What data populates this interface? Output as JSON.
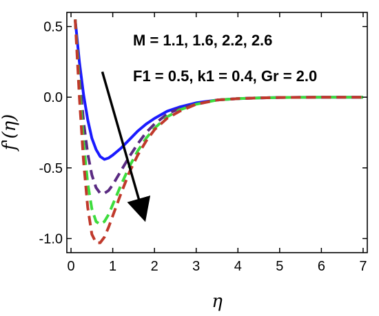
{
  "chart_data": {
    "type": "line",
    "xlabel": "η",
    "ylabel": "f'(η)",
    "xlim": [
      -0.1,
      7.1
    ],
    "ylim": [
      -1.1,
      0.6
    ],
    "xticks": [
      "0",
      "1",
      "2",
      "3",
      "4",
      "5",
      "6",
      "7"
    ],
    "yticks": [
      "0.5",
      "0.0",
      "-0.5",
      "-1.0"
    ],
    "annotation_line1": "M = 1.1,  1.6,  2.2,  2.6",
    "annotation_line2": "F1 = 0.5,  k1 = 0.4,  Gr = 2.0",
    "arrow": {
      "from": [
        0.75,
        0.18
      ],
      "to": [
        1.75,
        -0.85
      ]
    },
    "series": [
      {
        "color": "#1a1aff",
        "dashed": false,
        "x": [
          0.1,
          0.2,
          0.3,
          0.4,
          0.5,
          0.6,
          0.7,
          0.8,
          0.9,
          1.0,
          1.2,
          1.4,
          1.6,
          1.8,
          2.0,
          2.3,
          2.6,
          3.0,
          3.5,
          4.0,
          4.5,
          5.0,
          5.5,
          6.0,
          6.5,
          7.0
        ],
        "y": [
          0.55,
          0.25,
          0.02,
          -0.16,
          -0.29,
          -0.37,
          -0.42,
          -0.44,
          -0.43,
          -0.41,
          -0.36,
          -0.3,
          -0.24,
          -0.19,
          -0.15,
          -0.1,
          -0.07,
          -0.04,
          -0.02,
          -0.01,
          -0.005,
          -0.002,
          -0.001,
          0.0,
          0.0,
          0.0
        ]
      },
      {
        "color": "#5a2a82",
        "dashed": true,
        "x": [
          0.1,
          0.2,
          0.3,
          0.4,
          0.5,
          0.6,
          0.7,
          0.8,
          0.9,
          1.0,
          1.2,
          1.4,
          1.6,
          1.8,
          2.0,
          2.3,
          2.6,
          3.0,
          3.5,
          4.0,
          4.5,
          5.0,
          5.5,
          6.0,
          6.5,
          7.0
        ],
        "y": [
          0.55,
          0.15,
          -0.17,
          -0.4,
          -0.55,
          -0.64,
          -0.68,
          -0.68,
          -0.66,
          -0.62,
          -0.52,
          -0.42,
          -0.33,
          -0.25,
          -0.19,
          -0.12,
          -0.08,
          -0.05,
          -0.02,
          -0.01,
          -0.005,
          -0.002,
          -0.001,
          0.0,
          0.0,
          0.0
        ]
      },
      {
        "color": "#3ddc3d",
        "dashed": true,
        "x": [
          0.1,
          0.2,
          0.3,
          0.4,
          0.5,
          0.6,
          0.7,
          0.8,
          0.9,
          1.0,
          1.2,
          1.4,
          1.6,
          1.8,
          2.0,
          2.3,
          2.6,
          3.0,
          3.5,
          4.0,
          4.5,
          5.0,
          5.5,
          6.0,
          6.5,
          7.0
        ],
        "y": [
          0.55,
          0.08,
          -0.32,
          -0.61,
          -0.79,
          -0.88,
          -0.9,
          -0.88,
          -0.83,
          -0.76,
          -0.62,
          -0.49,
          -0.38,
          -0.29,
          -0.22,
          -0.14,
          -0.09,
          -0.05,
          -0.02,
          -0.01,
          -0.005,
          -0.002,
          -0.001,
          0.0,
          0.0,
          0.0
        ]
      },
      {
        "color": "#c0392b",
        "dashed": true,
        "x": [
          0.1,
          0.2,
          0.3,
          0.4,
          0.5,
          0.6,
          0.7,
          0.8,
          0.9,
          1.0,
          1.2,
          1.4,
          1.6,
          1.8,
          2.0,
          2.3,
          2.6,
          3.0,
          3.5,
          4.0,
          4.5,
          5.0,
          5.5,
          6.0,
          6.5,
          7.0
        ],
        "y": [
          0.55,
          0.0,
          -0.45,
          -0.78,
          -0.97,
          -1.03,
          -1.03,
          -0.99,
          -0.92,
          -0.84,
          -0.68,
          -0.53,
          -0.41,
          -0.31,
          -0.23,
          -0.15,
          -0.1,
          -0.05,
          -0.02,
          -0.01,
          -0.005,
          -0.002,
          -0.001,
          0.0,
          0.0,
          0.0
        ]
      }
    ]
  }
}
